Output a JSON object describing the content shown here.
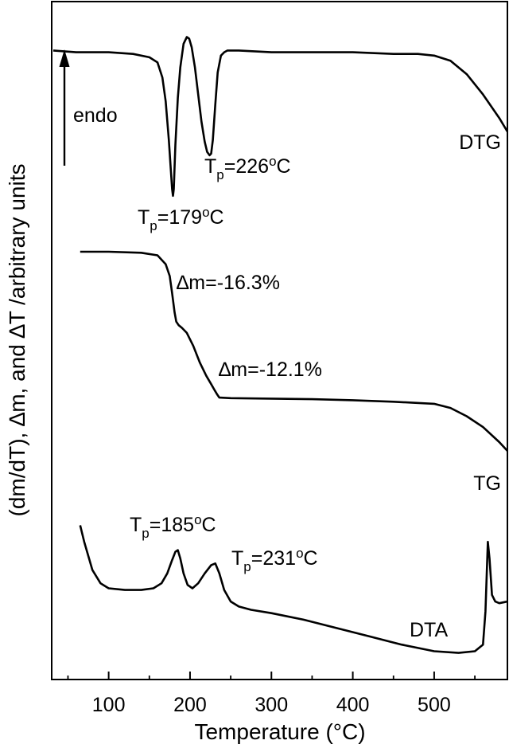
{
  "chart_data": {
    "type": "line",
    "xlabel": "Temperature (°C)",
    "ylabel": "(dm/dT), ∆m, and ∆T  /arbitrary units",
    "xlim": [
      30,
      590
    ],
    "x_ticks": [
      100,
      200,
      300,
      400,
      500
    ],
    "y_ticks_shown": false,
    "series": [
      {
        "name": "DTG",
        "x": [
          32,
          60,
          100,
          130,
          150,
          160,
          166,
          170,
          174,
          176,
          178,
          179,
          180,
          182,
          185,
          188,
          192,
          196,
          199,
          202,
          206,
          210,
          214,
          218,
          221,
          224,
          226,
          228,
          231,
          234,
          238,
          242,
          246,
          250,
          260,
          300,
          350,
          400,
          450,
          480,
          500,
          520,
          540,
          560,
          580,
          590
        ],
        "y": [
          0.88,
          0.87,
          0.87,
          0.86,
          0.84,
          0.81,
          0.72,
          0.58,
          0.35,
          0.2,
          0.06,
          0.02,
          0.06,
          0.32,
          0.6,
          0.78,
          0.92,
          0.96,
          0.95,
          0.9,
          0.78,
          0.62,
          0.46,
          0.34,
          0.28,
          0.26,
          0.27,
          0.35,
          0.56,
          0.75,
          0.85,
          0.87,
          0.88,
          0.88,
          0.88,
          0.87,
          0.87,
          0.87,
          0.86,
          0.86,
          0.85,
          0.82,
          0.74,
          0.62,
          0.48,
          0.4
        ]
      },
      {
        "name": "TG",
        "x": [
          65,
          100,
          140,
          160,
          170,
          175,
          178,
          181,
          183,
          186,
          190,
          196,
          204,
          212,
          220,
          226,
          230,
          233,
          236,
          250,
          300,
          350,
          400,
          450,
          500,
          520,
          540,
          560,
          580,
          590
        ],
        "y": [
          100.0,
          100.0,
          99.8,
          99.3,
          97.6,
          95.3,
          92.0,
          88.3,
          86.5,
          85.8,
          85.3,
          84.3,
          81.8,
          78.6,
          76.0,
          74.4,
          73.3,
          72.5,
          71.8,
          71.7,
          71.6,
          71.5,
          71.3,
          71.0,
          70.6,
          69.8,
          68.2,
          66.1,
          63.2,
          61.5
        ]
      },
      {
        "name": "DTA",
        "x": [
          65,
          70,
          80,
          90,
          100,
          120,
          140,
          155,
          165,
          172,
          178,
          182,
          185,
          188,
          192,
          197,
          203,
          210,
          218,
          226,
          231,
          236,
          242,
          250,
          260,
          275,
          300,
          340,
          380,
          420,
          460,
          500,
          530,
          550,
          560,
          563,
          566,
          568,
          571,
          575,
          580,
          590
        ],
        "y": [
          0.82,
          0.72,
          0.55,
          0.47,
          0.44,
          0.43,
          0.43,
          0.44,
          0.47,
          0.53,
          0.61,
          0.66,
          0.67,
          0.62,
          0.53,
          0.46,
          0.44,
          0.47,
          0.53,
          0.58,
          0.59,
          0.53,
          0.43,
          0.36,
          0.33,
          0.31,
          0.29,
          0.25,
          0.2,
          0.15,
          0.1,
          0.06,
          0.05,
          0.06,
          0.1,
          0.3,
          0.72,
          0.62,
          0.4,
          0.36,
          0.35,
          0.36
        ]
      }
    ],
    "annotations": {
      "endo": "endo",
      "dtg_label": "DTG",
      "tg_label": "TG",
      "dta_label": "DTA",
      "tp_179": {
        "t": "T",
        "sub": "p",
        "val": "=179",
        "sup": "o",
        "unit": "C"
      },
      "tp_226": {
        "t": "T",
        "sub": "p",
        "val": "=226",
        "sup": "o",
        "unit": "C"
      },
      "tp_185": {
        "t": "T",
        "sub": "p",
        "val": "=185",
        "sup": "o",
        "unit": "C"
      },
      "tp_231": {
        "t": "T",
        "sub": "p",
        "val": "=231",
        "sup": "o",
        "unit": "C"
      },
      "dm_1": "∆m=-16.3%",
      "dm_2": "∆m=-12.1%"
    }
  }
}
